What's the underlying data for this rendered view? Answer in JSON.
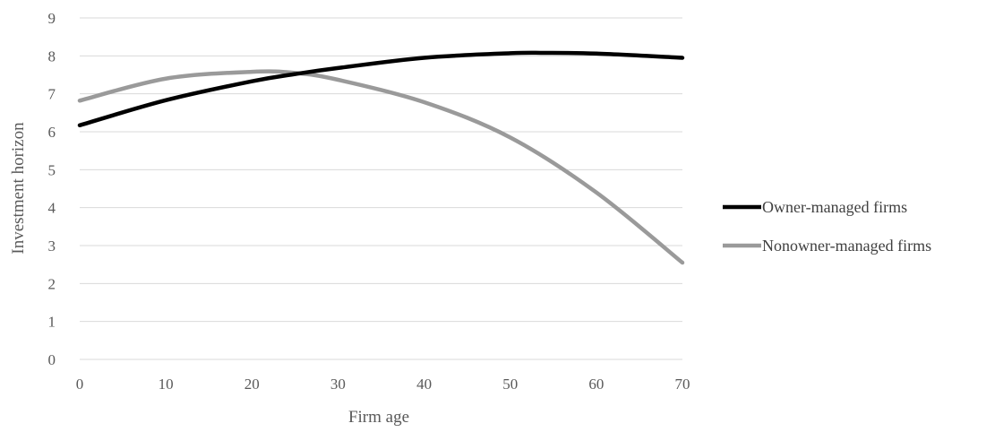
{
  "chart_data": {
    "type": "line",
    "title": "",
    "xlabel": "Firm age",
    "ylabel": "Investment horizon",
    "xlim": [
      0,
      70
    ],
    "ylim": [
      0,
      9
    ],
    "x_ticks": [
      0,
      10,
      20,
      30,
      40,
      50,
      60,
      70
    ],
    "y_ticks": [
      0,
      1,
      2,
      3,
      4,
      5,
      6,
      7,
      8,
      9
    ],
    "grid": "horizontal",
    "legend_position": "right",
    "series": [
      {
        "name": "Owner-managed firms",
        "color": "#000000",
        "x": [
          0,
          10,
          20,
          25,
          30,
          40,
          50,
          54,
          60,
          70
        ],
        "y": [
          6.17,
          6.83,
          7.33,
          7.52,
          7.68,
          7.95,
          8.07,
          8.08,
          8.06,
          7.95
        ]
      },
      {
        "name": "Nonowner-managed firms",
        "color": "#9a9a9a",
        "x": [
          0,
          10,
          20,
          25,
          30,
          40,
          50,
          60,
          70
        ],
        "y": [
          6.82,
          7.4,
          7.58,
          7.55,
          7.37,
          6.78,
          5.85,
          4.4,
          2.55
        ]
      }
    ]
  }
}
